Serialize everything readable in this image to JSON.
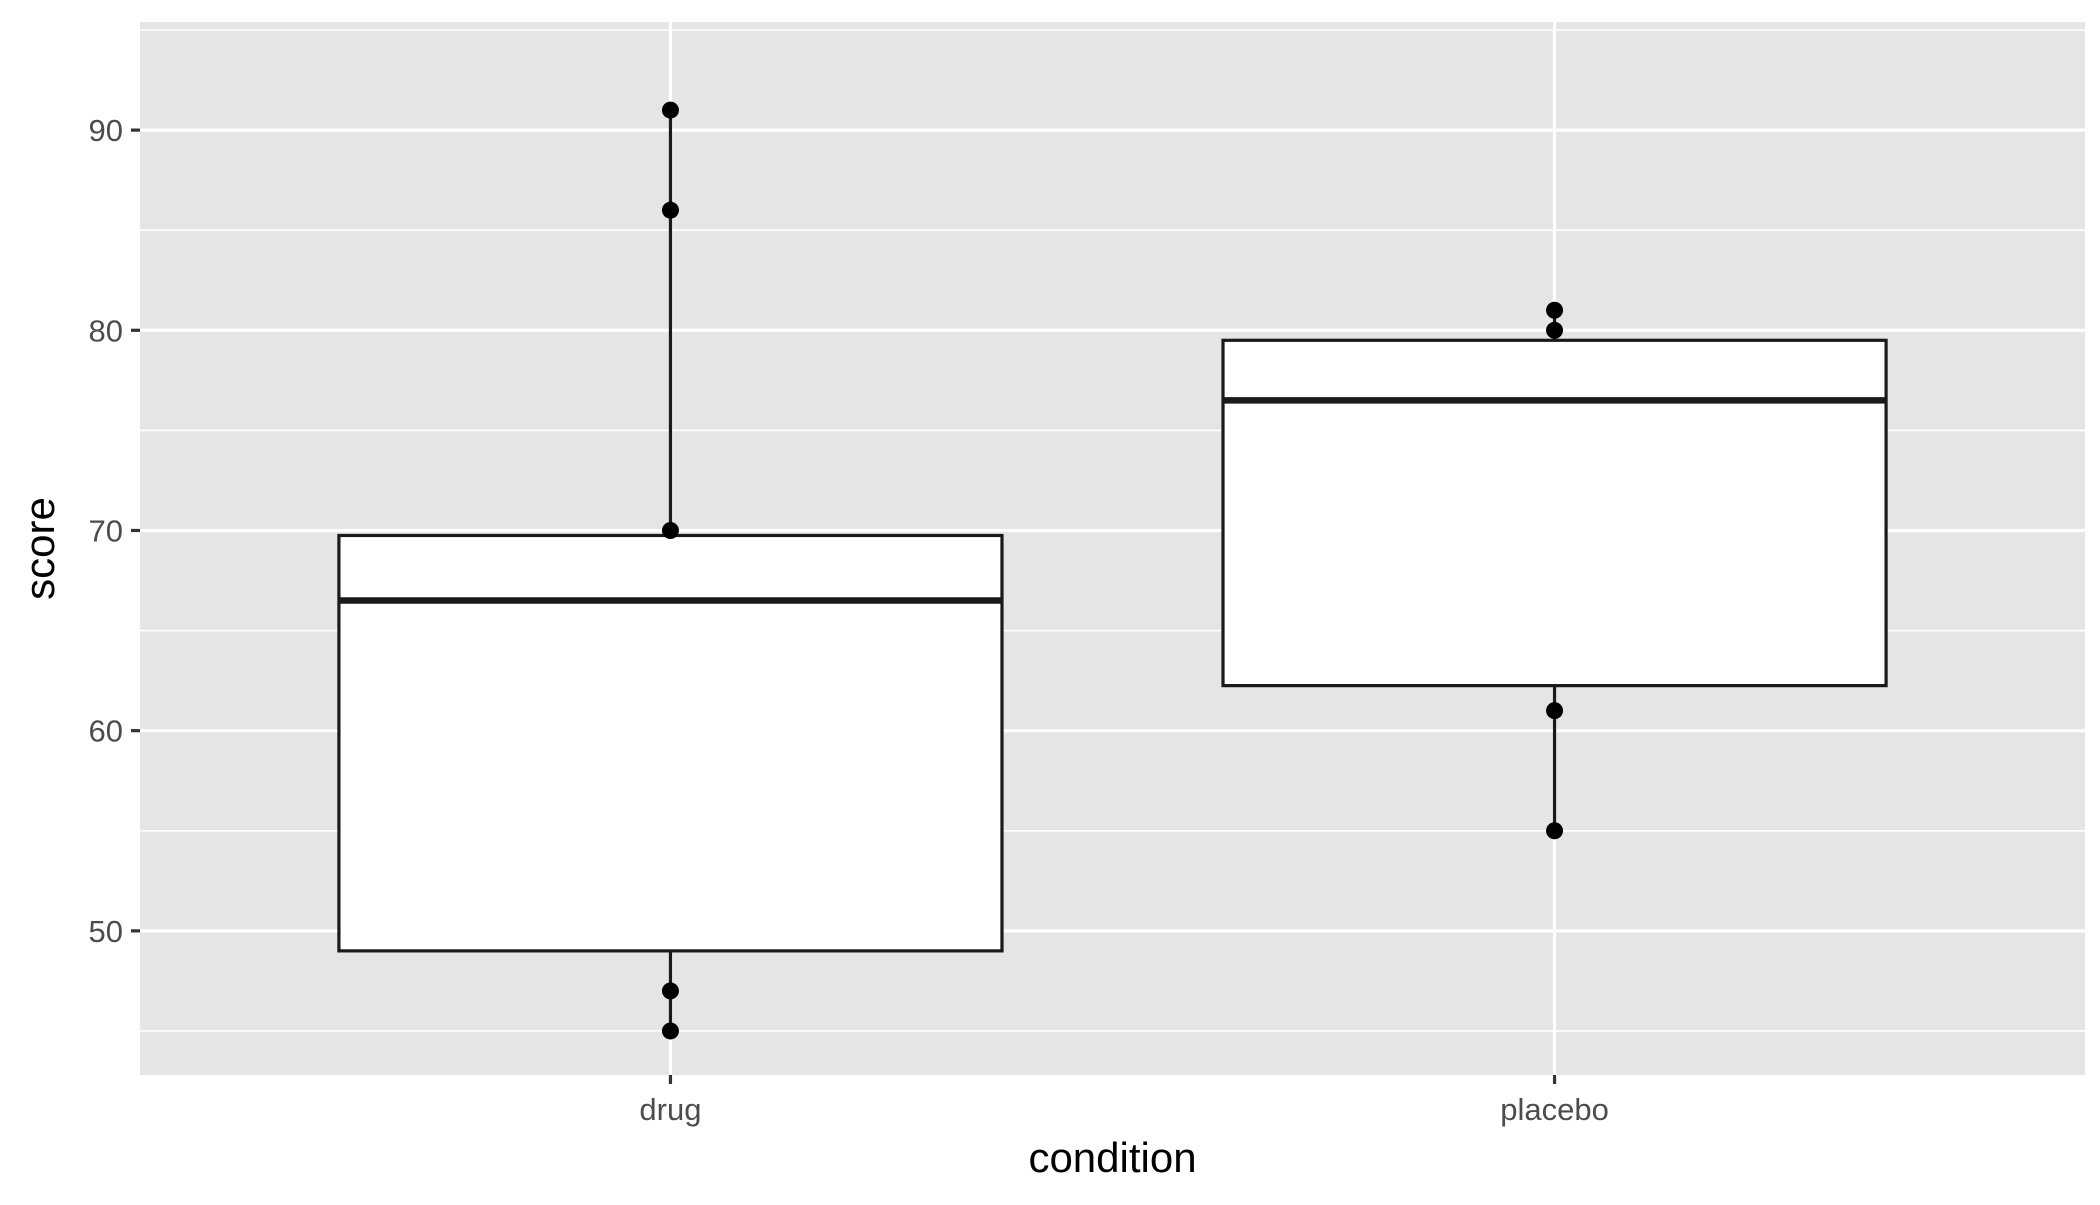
{
  "chart_data": {
    "type": "boxplot",
    "title": "",
    "xlabel": "condition",
    "ylabel": "score",
    "ylim": [
      42.8,
      95.4
    ],
    "y_ticks": [
      50,
      60,
      70,
      80,
      90
    ],
    "y_tick_labels": [
      "50",
      "60",
      "70",
      "80",
      "90"
    ],
    "grid": true,
    "panel_background": "#e5e5e5",
    "categories": [
      "drug",
      "placebo"
    ],
    "boxes": [
      {
        "category": "drug",
        "lower_whisker": 45,
        "q1": 49,
        "median": 66.5,
        "q3": 69.75,
        "upper_whisker": 91
      },
      {
        "category": "placebo",
        "lower_whisker": 55,
        "q1": 62.25,
        "median": 76.5,
        "q3": 79.5,
        "upper_whisker": 81
      }
    ],
    "points": [
      {
        "category": "drug",
        "values": [
          91,
          86,
          70,
          47,
          45
        ]
      },
      {
        "category": "placebo",
        "values": [
          81,
          80,
          61,
          55
        ]
      }
    ]
  },
  "colors": {
    "panel": "#e5e5e5",
    "grid": "#ffffff",
    "box_fill": "#ffffff",
    "line": "#1a1a1a",
    "point": "#000000",
    "tick_text": "#4d4d4d",
    "tick_mark": "#333333"
  }
}
